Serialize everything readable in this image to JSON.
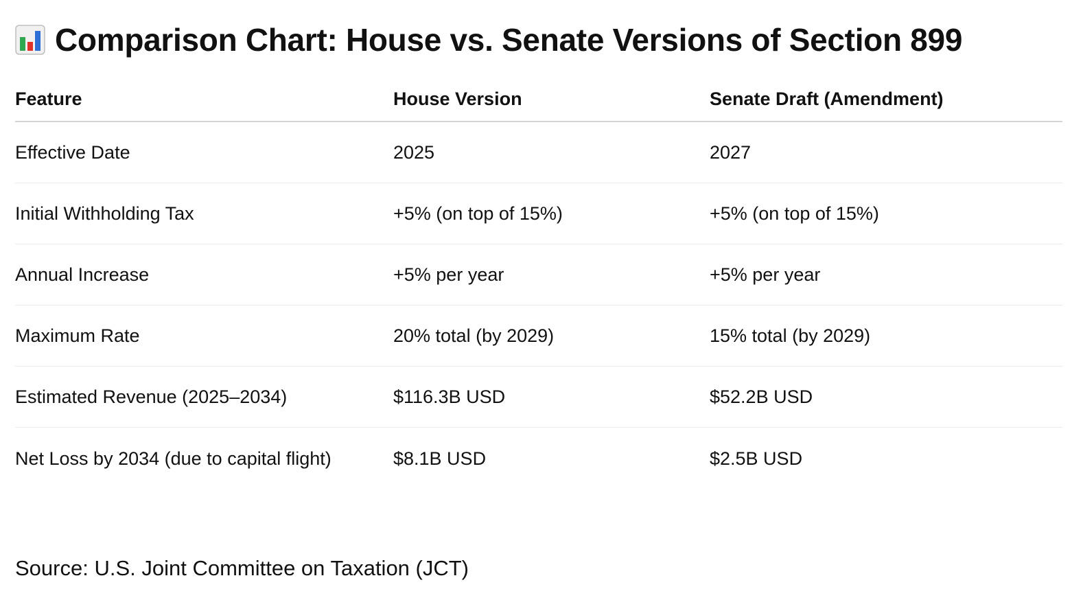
{
  "header": {
    "icon": "bar-chart-icon",
    "title": "Comparison Chart: House vs. Senate Versions of Section 899"
  },
  "table": {
    "columns": [
      "Feature",
      "House Version",
      "Senate Draft (Amendment)"
    ],
    "rows": [
      [
        "Effective Date",
        "2025",
        "2027"
      ],
      [
        "Initial Withholding Tax",
        "+5% (on top of 15%)",
        "+5% (on top of 15%)"
      ],
      [
        "Annual Increase",
        "+5% per year",
        "+5% per year"
      ],
      [
        "Maximum Rate",
        "20% total (by 2029)",
        "15% total (by 2029)"
      ],
      [
        "Estimated Revenue (2025–2034)",
        "$116.3B USD",
        "$52.2B USD"
      ],
      [
        "Net Loss by 2034 (due to capital flight)",
        "$8.1B USD",
        "$2.5B USD"
      ]
    ]
  },
  "footer": {
    "source": "Source: U.S. Joint Committee on Taxation (JCT)"
  },
  "colors": {
    "text": "#111111",
    "header_rule": "#d4d4d4",
    "row_rule": "#ececec",
    "icon_bar_green": "#2fa84f",
    "icon_bar_red": "#e0322b",
    "icon_bar_blue": "#2d6fd6"
  }
}
